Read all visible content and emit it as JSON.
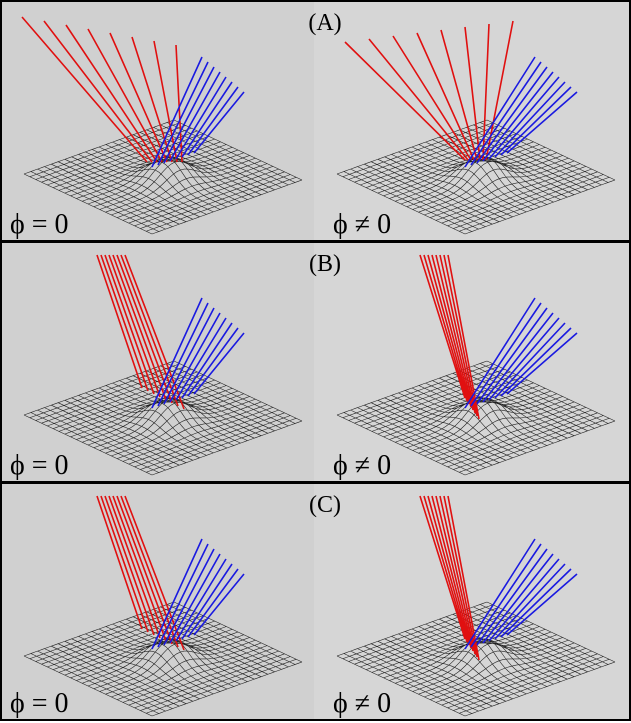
{
  "panels": [
    {
      "label": "(A)",
      "left_label": "ϕ = 0",
      "right_label": "ϕ ≠ 0"
    },
    {
      "label": "(B)",
      "left_label": "ϕ = 0",
      "right_label": "ϕ ≠ 0"
    },
    {
      "label": "(C)",
      "left_label": "ϕ = 0",
      "right_label": "ϕ ≠ 0"
    }
  ]
}
